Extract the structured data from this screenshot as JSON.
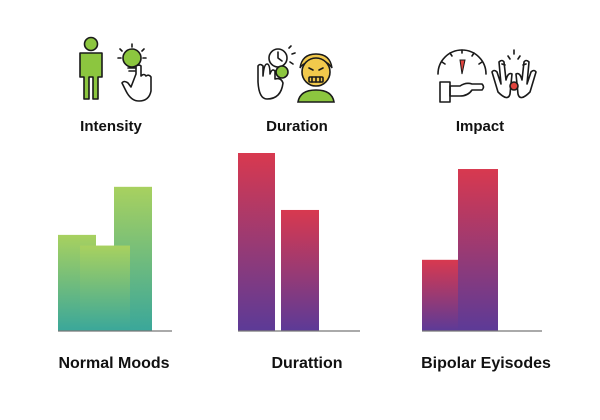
{
  "colors": {
    "green_top": "#a8d15f",
    "green_bottom": "#3aa79a",
    "red_top": "#d8394f",
    "purple_bottom": "#5c3a97",
    "axis": "#777777",
    "icon_green": "#8cc63f",
    "icon_yellow": "#f2c94c",
    "icon_red": "#e0443e"
  },
  "icons": {
    "intensity": [
      "person-icon",
      "lightbulb-hand-icon"
    ],
    "duration": [
      "hand-clock-icon",
      "stressed-face-icon"
    ],
    "impact": [
      "gauge-icon",
      "hands-icon"
    ]
  },
  "chart_data": [
    {
      "type": "bar",
      "title": "Intensity",
      "caption": "Normal Moods",
      "categories": [
        "",
        "",
        ""
      ],
      "values": [
        0.54,
        0.48,
        0.81
      ],
      "ylim": [
        0,
        1
      ],
      "grid": false,
      "palette": "green"
    },
    {
      "type": "bar",
      "title": "Duration",
      "caption": "Durattion",
      "categories": [
        "",
        ""
      ],
      "values": [
        1.0,
        0.68
      ],
      "ylim": [
        0,
        1
      ],
      "grid": false,
      "palette": "redpurple"
    },
    {
      "type": "bar",
      "title": "Impact",
      "caption": "Bipolar Eyisodes",
      "categories": [
        "",
        ""
      ],
      "values": [
        0.4,
        0.91
      ],
      "ylim": [
        0,
        1
      ],
      "grid": false,
      "palette": "redpurple"
    }
  ]
}
